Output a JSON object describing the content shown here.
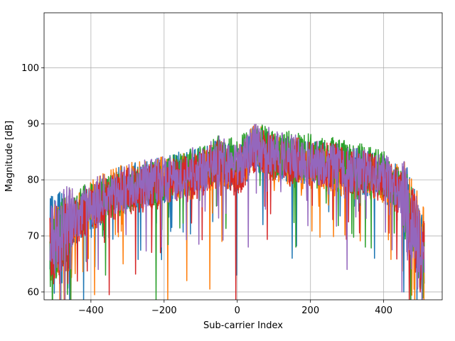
{
  "chart_data": {
    "type": "line",
    "title": "",
    "xlabel": "Sub-carrier Index",
    "ylabel": "Magnitude [dB]",
    "xlim": [
      -528,
      560
    ],
    "ylim": [
      58.6,
      109.8
    ],
    "xticks": [
      -400,
      -200,
      0,
      200,
      400
    ],
    "yticks": [
      60,
      70,
      80,
      90,
      100
    ],
    "xtick_labels": [
      "−400",
      "−200",
      "0",
      "200",
      "400"
    ],
    "ytick_labels": [
      "60",
      "70",
      "80",
      "90",
      "100"
    ],
    "grid": true,
    "legend": "none",
    "x_range_data": [
      -512,
      511
    ],
    "guard_band_edges": [
      -450,
      450
    ],
    "series": [
      {
        "color": "#1f77b4",
        "envelope_x": [
          -512,
          -450,
          -400,
          -300,
          -200,
          -100,
          -50,
          0,
          50,
          100,
          200,
          300,
          400,
          450,
          511
        ],
        "envelope_y": [
          70,
          72,
          75,
          79,
          80,
          82,
          83,
          82,
          85,
          84,
          83,
          82,
          80,
          78,
          66
        ],
        "notable_dips": [
          [
            -420,
            58.6
          ],
          [
            -2,
            63
          ],
          [
            70,
            72
          ],
          [
            150,
            66
          ],
          [
            375,
            66
          ],
          [
            455,
            60
          ]
        ]
      },
      {
        "color": "#ff7f0e",
        "envelope_x": [
          -512,
          -450,
          -400,
          -300,
          -200,
          -100,
          -50,
          0,
          50,
          100,
          200,
          300,
          400,
          450,
          511
        ],
        "envelope_y": [
          68,
          72,
          76,
          79,
          80,
          81,
          83,
          82,
          86,
          84,
          82,
          81,
          80,
          78,
          68
        ],
        "notable_dips": [
          [
            -390,
            59.5
          ],
          [
            -312,
            65
          ],
          [
            -190,
            58.6
          ],
          [
            -138,
            62
          ],
          [
            -75,
            60.5
          ],
          [
            -42,
            69
          ]
        ]
      },
      {
        "color": "#2ca02c",
        "envelope_x": [
          -512,
          -450,
          -400,
          -300,
          -200,
          -100,
          -50,
          0,
          50,
          100,
          200,
          300,
          400,
          450,
          511
        ],
        "envelope_y": [
          66,
          73,
          76,
          78,
          80,
          82,
          84,
          83,
          86,
          85,
          84,
          83,
          81,
          78,
          65
        ],
        "notable_dips": [
          [
            -515,
            58.6
          ],
          [
            -455,
            58.6
          ],
          [
            -222,
            58.6
          ],
          [
            -360,
            63
          ],
          [
            160,
            68
          ],
          [
            350,
            68
          ]
        ]
      },
      {
        "color": "#d62728",
        "envelope_x": [
          -512,
          -450,
          -400,
          -300,
          -200,
          -100,
          -50,
          0,
          50,
          100,
          200,
          300,
          400,
          450,
          511
        ],
        "envelope_y": [
          67,
          72,
          75,
          78,
          79,
          81,
          83,
          81,
          85,
          84,
          83,
          82,
          80,
          77,
          66
        ],
        "notable_dips": [
          [
            -350,
            59.5
          ],
          [
            -4,
            58.6
          ],
          [
            -210,
            67
          ],
          [
            470,
            58.6
          ],
          [
            500,
            60
          ]
        ]
      },
      {
        "color": "#9467bd",
        "envelope_x": [
          -512,
          -450,
          -400,
          -300,
          -200,
          -100,
          -50,
          0,
          50,
          100,
          200,
          300,
          400,
          450,
          511
        ],
        "envelope_y": [
          69,
          73,
          76,
          79,
          80,
          82,
          84,
          82,
          86,
          85,
          83,
          82,
          81,
          78,
          67
        ],
        "notable_dips": [
          [
            -380,
            64
          ],
          [
            -105,
            68.5
          ],
          [
            30,
            68
          ],
          [
            300,
            64
          ],
          [
            423,
            67.5
          ],
          [
            450,
            60
          ]
        ]
      }
    ]
  }
}
